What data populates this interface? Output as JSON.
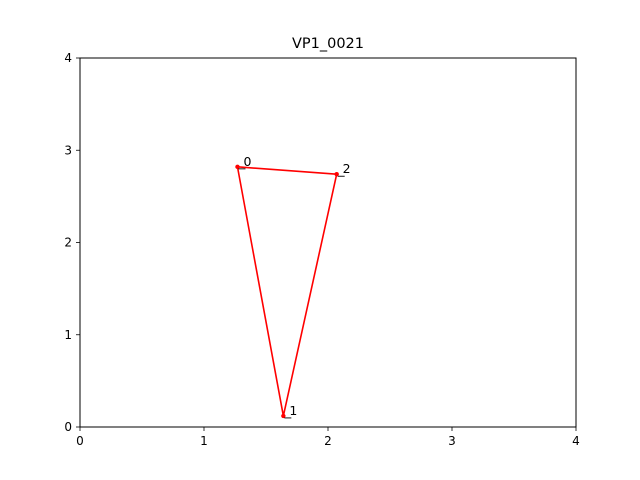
{
  "chart_data": {
    "type": "line",
    "title": "VP1_0021",
    "xlabel": "",
    "ylabel": "",
    "xlim": [
      0,
      4
    ],
    "ylim": [
      0,
      4
    ],
    "xticks": [
      "0",
      "1",
      "2",
      "3",
      "4"
    ],
    "yticks": [
      "0",
      "1",
      "2",
      "3",
      "4"
    ],
    "grid": false,
    "series": [
      {
        "color": "#ff0000",
        "closed": true,
        "points": [
          {
            "label": "0",
            "x": 1.27,
            "y": 2.82
          },
          {
            "label": "1",
            "x": 1.64,
            "y": 0.12
          },
          {
            "label": "2",
            "x": 2.07,
            "y": 2.74
          }
        ]
      }
    ]
  }
}
